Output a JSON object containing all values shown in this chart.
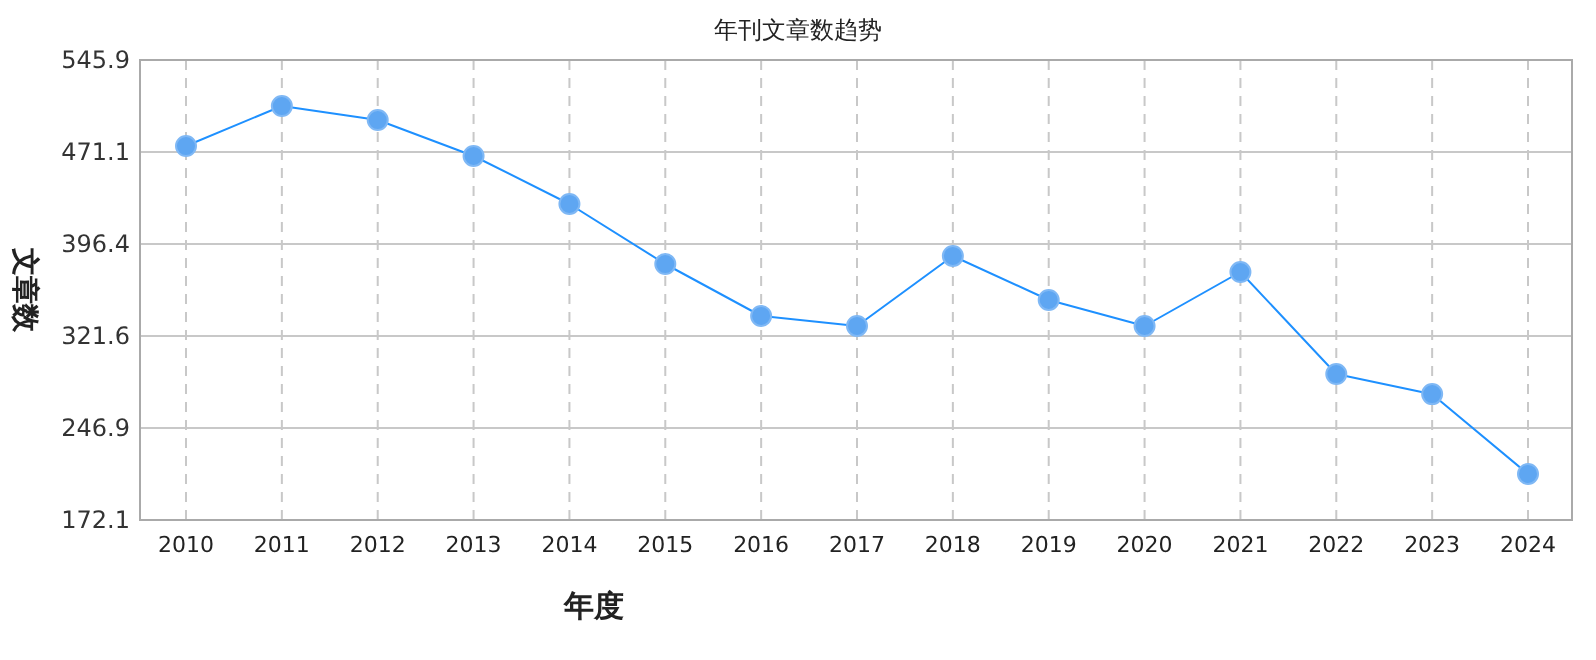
{
  "chart_data": {
    "type": "line",
    "title": "年刊文章数趋势",
    "xlabel": "年度",
    "ylabel": "文章数",
    "categories": [
      "2010",
      "2011",
      "2012",
      "2013",
      "2014",
      "2015",
      "2016",
      "2017",
      "2018",
      "2019",
      "2020",
      "2021",
      "2022",
      "2023",
      "2024"
    ],
    "series": [
      {
        "color": "#1e90ff",
        "values": [
          476.0,
          508.5,
          497.1,
          467.9,
          428.9,
          380.1,
          337.9,
          329.8,
          386.7,
          350.9,
          329.8,
          373.6,
          290.7,
          274.4,
          209.5
        ]
      }
    ],
    "ylim": [
      172.1,
      545.9
    ],
    "yticks": [
      172.1,
      246.9,
      321.6,
      396.4,
      471.1,
      545.9
    ],
    "grid": true,
    "marker": "circle"
  }
}
